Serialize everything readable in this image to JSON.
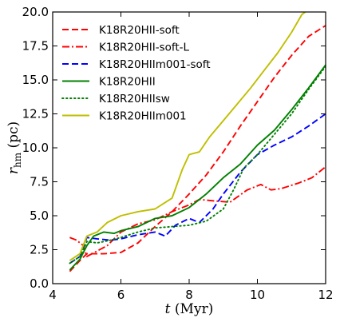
{
  "chart_data": {
    "type": "line",
    "xlabel": "t (Myr)",
    "ylabel": "r_hm (pc)",
    "xlim": [
      4,
      12
    ],
    "ylim": [
      0,
      20
    ],
    "x_ticks": [
      "4",
      "6",
      "8",
      "10",
      "12"
    ],
    "y_ticks": [
      "0.0",
      "2.5",
      "5.0",
      "7.5",
      "10.0",
      "12.5",
      "15.0",
      "17.5",
      "20.0"
    ],
    "legend_position": "top-left",
    "series": [
      {
        "name": "K18R20HII-soft",
        "color": "#ff0000",
        "style": "dashed",
        "points": [
          [
            4.5,
            0.9
          ],
          [
            4.8,
            1.7
          ],
          [
            5.0,
            2.2
          ],
          [
            5.2,
            2.2
          ],
          [
            5.5,
            2.2
          ],
          [
            6.0,
            2.3
          ],
          [
            6.5,
            3.0
          ],
          [
            7.0,
            4.2
          ],
          [
            7.5,
            5.3
          ],
          [
            8.0,
            6.6
          ],
          [
            8.5,
            8.0
          ],
          [
            9.0,
            9.7
          ],
          [
            9.5,
            11.6
          ],
          [
            10.0,
            13.4
          ],
          [
            10.5,
            15.2
          ],
          [
            11.0,
            16.8
          ],
          [
            11.5,
            18.2
          ],
          [
            12.0,
            19.0
          ]
        ]
      },
      {
        "name": "K18R20HII-soft-L",
        "color": "#ff0000",
        "style": "dashdot",
        "points": [
          [
            4.5,
            3.4
          ],
          [
            4.7,
            3.2
          ],
          [
            4.9,
            2.8
          ],
          [
            5.0,
            2.0
          ],
          [
            5.3,
            2.4
          ],
          [
            5.6,
            2.8
          ],
          [
            6.0,
            3.8
          ],
          [
            6.5,
            4.4
          ],
          [
            7.0,
            4.7
          ],
          [
            7.5,
            5.3
          ],
          [
            8.0,
            5.8
          ],
          [
            8.3,
            6.2
          ],
          [
            8.7,
            6.1
          ],
          [
            9.2,
            6.0
          ],
          [
            9.7,
            6.9
          ],
          [
            10.1,
            7.3
          ],
          [
            10.4,
            6.9
          ],
          [
            10.7,
            7.0
          ],
          [
            11.2,
            7.4
          ],
          [
            11.6,
            7.8
          ],
          [
            12.0,
            8.6
          ]
        ]
      },
      {
        "name": "K18R20HIIm001-soft",
        "color": "#0000ff",
        "style": "dashed",
        "points": [
          [
            4.5,
            1.5
          ],
          [
            4.8,
            2.0
          ],
          [
            5.0,
            3.4
          ],
          [
            5.3,
            3.3
          ],
          [
            5.7,
            3.2
          ],
          [
            6.0,
            3.3
          ],
          [
            6.5,
            3.6
          ],
          [
            7.0,
            3.8
          ],
          [
            7.3,
            3.5
          ],
          [
            7.6,
            4.3
          ],
          [
            8.0,
            4.8
          ],
          [
            8.3,
            4.5
          ],
          [
            8.7,
            5.5
          ],
          [
            9.0,
            6.6
          ],
          [
            9.5,
            8.2
          ],
          [
            10.0,
            9.5
          ],
          [
            10.5,
            10.2
          ],
          [
            11.0,
            10.8
          ],
          [
            11.5,
            11.6
          ],
          [
            12.0,
            12.5
          ]
        ]
      },
      {
        "name": "K18R20HII",
        "color": "#008000",
        "style": "solid",
        "points": [
          [
            4.5,
            1.0
          ],
          [
            4.8,
            1.8
          ],
          [
            5.0,
            2.8
          ],
          [
            5.2,
            3.5
          ],
          [
            5.5,
            3.8
          ],
          [
            5.8,
            3.7
          ],
          [
            6.0,
            3.9
          ],
          [
            6.5,
            4.2
          ],
          [
            7.0,
            4.8
          ],
          [
            7.5,
            5.0
          ],
          [
            8.0,
            5.6
          ],
          [
            8.5,
            6.6
          ],
          [
            9.0,
            7.8
          ],
          [
            9.5,
            8.8
          ],
          [
            10.0,
            10.2
          ],
          [
            10.5,
            11.3
          ],
          [
            11.0,
            12.8
          ],
          [
            11.5,
            14.4
          ],
          [
            12.0,
            16.1
          ]
        ]
      },
      {
        "name": "K18R20HIIsw",
        "color": "#008000",
        "style": "dotted",
        "points": [
          [
            4.5,
            1.5
          ],
          [
            4.8,
            2.0
          ],
          [
            5.0,
            3.1
          ],
          [
            5.3,
            3.0
          ],
          [
            5.7,
            3.2
          ],
          [
            6.0,
            3.4
          ],
          [
            6.5,
            3.8
          ],
          [
            7.0,
            4.1
          ],
          [
            7.5,
            4.2
          ],
          [
            8.0,
            4.3
          ],
          [
            8.5,
            4.6
          ],
          [
            9.0,
            5.5
          ],
          [
            9.3,
            6.9
          ],
          [
            9.6,
            8.5
          ],
          [
            10.0,
            9.5
          ],
          [
            10.5,
            11.0
          ],
          [
            11.0,
            12.5
          ],
          [
            11.5,
            14.3
          ],
          [
            12.0,
            16.0
          ]
        ]
      },
      {
        "name": "K18R20HIIm001",
        "color": "#bfbf00",
        "style": "solid",
        "points": [
          [
            4.5,
            1.7
          ],
          [
            4.8,
            2.2
          ],
          [
            5.0,
            3.5
          ],
          [
            5.3,
            3.8
          ],
          [
            5.6,
            4.5
          ],
          [
            6.0,
            5.0
          ],
          [
            6.5,
            5.3
          ],
          [
            7.0,
            5.5
          ],
          [
            7.5,
            6.3
          ],
          [
            7.8,
            8.4
          ],
          [
            8.0,
            9.5
          ],
          [
            8.3,
            9.7
          ],
          [
            8.6,
            10.8
          ],
          [
            9.0,
            12.0
          ],
          [
            9.4,
            13.2
          ],
          [
            9.8,
            14.4
          ],
          [
            10.2,
            15.7
          ],
          [
            10.6,
            17.0
          ],
          [
            11.0,
            18.5
          ],
          [
            11.3,
            19.8
          ],
          [
            11.4,
            20.0
          ]
        ]
      }
    ]
  }
}
